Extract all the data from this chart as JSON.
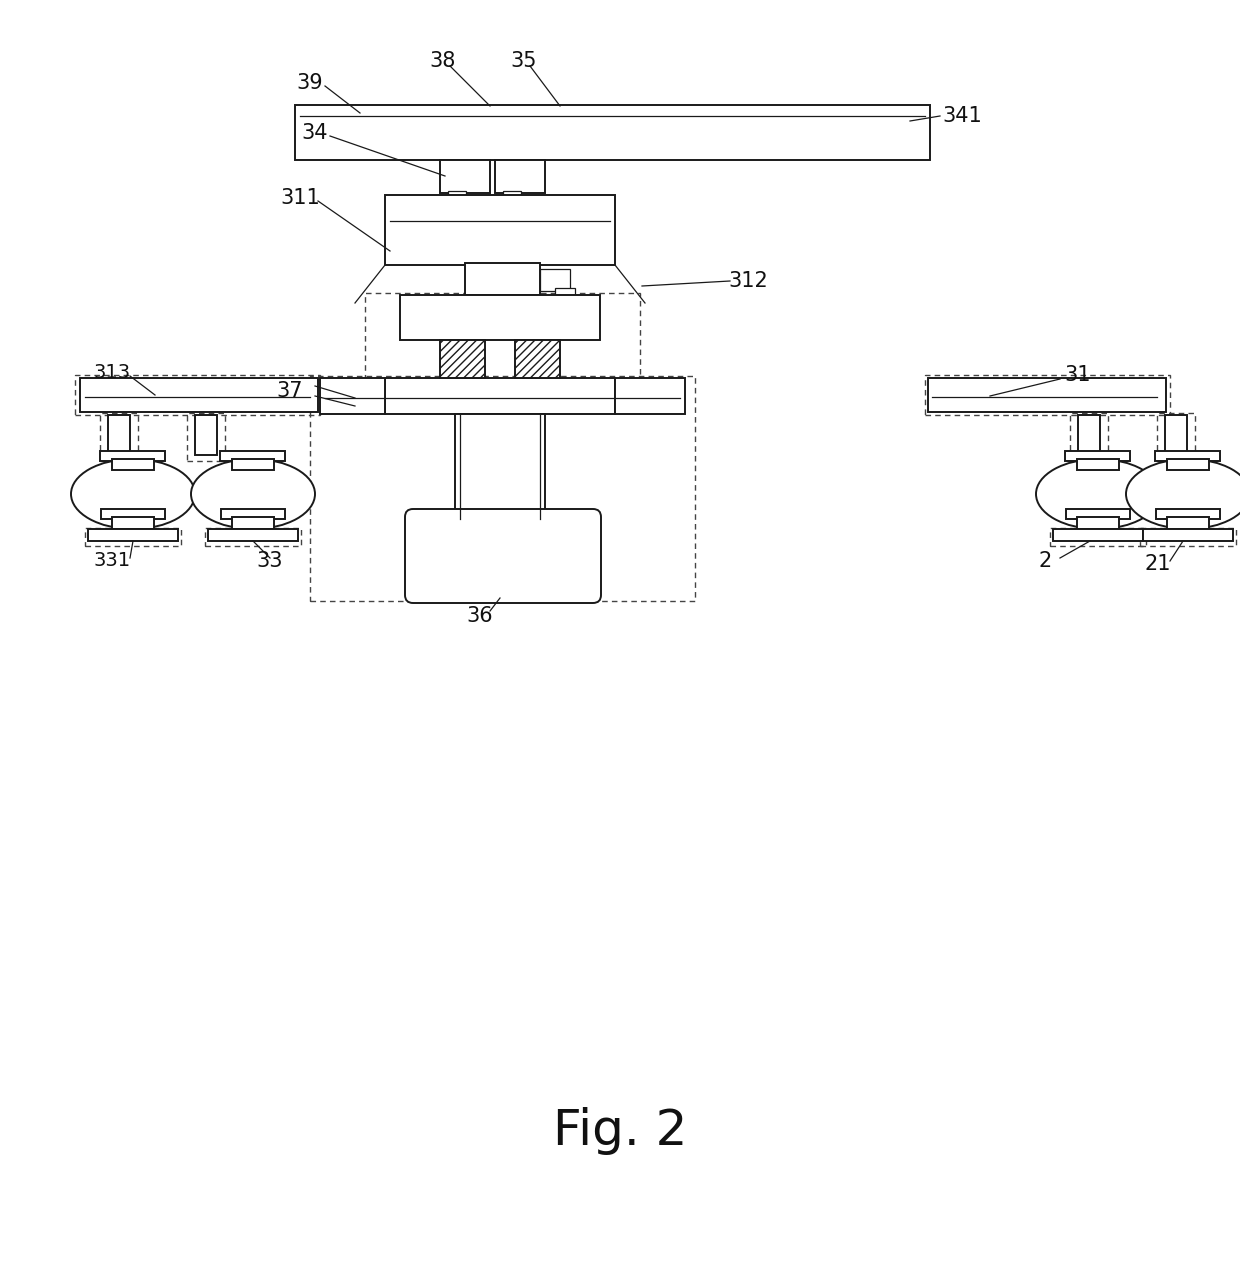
{
  "title": "Fig. 2",
  "title_fontsize": 32,
  "bg_color": "#ffffff",
  "line_color": "#1a1a1a",
  "dashed_color": "#444444",
  "lw_main": 1.4,
  "lw_thin": 0.9,
  "lw_dash": 1.0
}
